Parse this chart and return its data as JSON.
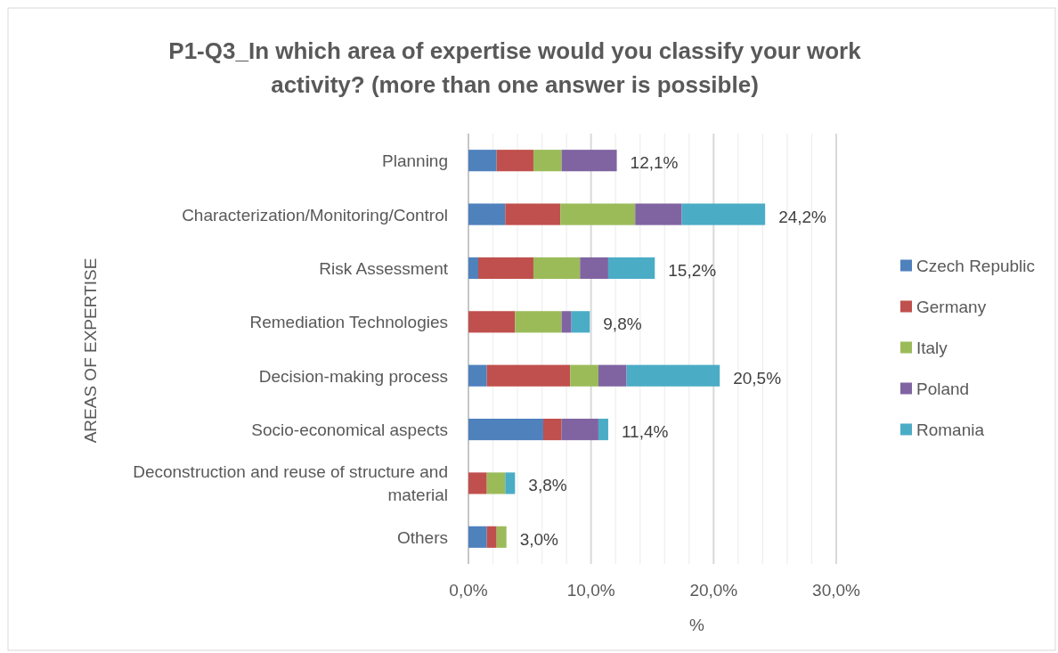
{
  "chart_data": {
    "type": "bar",
    "orientation": "horizontal",
    "stacked": true,
    "title": "P1-Q3_In which area of expertise would you classify your work activity? (more than one answer is possible)",
    "xlabel": "%",
    "ylabel": "AREAS OF EXPERTISE",
    "categories": [
      "Planning",
      "Characterization/Monitoring/Control",
      "Risk Assessment",
      "Remediation Technologies",
      "Decision-making process",
      "Socio-economical aspects",
      "Deconstruction and reuse of structure and material",
      "Others"
    ],
    "series": [
      {
        "name": "Czech Republic",
        "color": "#4f81bd",
        "values": [
          2.3,
          3.0,
          0.8,
          0,
          1.5,
          6.1,
          0,
          1.5
        ]
      },
      {
        "name": "Germany",
        "color": "#c0504d",
        "values": [
          3.0,
          4.5,
          4.5,
          3.8,
          6.8,
          1.5,
          1.5,
          0.8
        ]
      },
      {
        "name": "Italy",
        "color": "#9bbb59",
        "values": [
          2.3,
          6.1,
          3.8,
          3.8,
          2.3,
          0,
          1.5,
          0.8
        ]
      },
      {
        "name": "Poland",
        "color": "#8064a2",
        "values": [
          4.5,
          3.8,
          2.3,
          0.8,
          2.3,
          3.0,
          0,
          0
        ]
      },
      {
        "name": "Romania",
        "color": "#4bacc6",
        "values": [
          0,
          6.8,
          3.8,
          1.5,
          7.6,
          0.8,
          0.8,
          0
        ]
      }
    ],
    "totals": [
      "12,1%",
      "24,2%",
      "15,2%",
      "9,8%",
      "20,5%",
      "11,4%",
      "3,8%",
      "3,0%"
    ],
    "xlim": [
      0,
      30
    ],
    "xticks": [
      {
        "value": 0,
        "label": "0,0%"
      },
      {
        "value": 2,
        "label": null
      },
      {
        "value": 4,
        "label": null
      },
      {
        "value": 6,
        "label": null
      },
      {
        "value": 8,
        "label": null
      },
      {
        "value": 10,
        "label": "10,0%"
      },
      {
        "value": 12,
        "label": null
      },
      {
        "value": 14,
        "label": null
      },
      {
        "value": 16,
        "label": null
      },
      {
        "value": 18,
        "label": null
      },
      {
        "value": 20,
        "label": "20,0%"
      },
      {
        "value": 22,
        "label": null
      },
      {
        "value": 24,
        "label": null
      },
      {
        "value": 26,
        "label": null
      },
      {
        "value": 28,
        "label": null
      },
      {
        "value": 30,
        "label": "30,0%"
      }
    ],
    "grid": "x",
    "legend": "right"
  }
}
